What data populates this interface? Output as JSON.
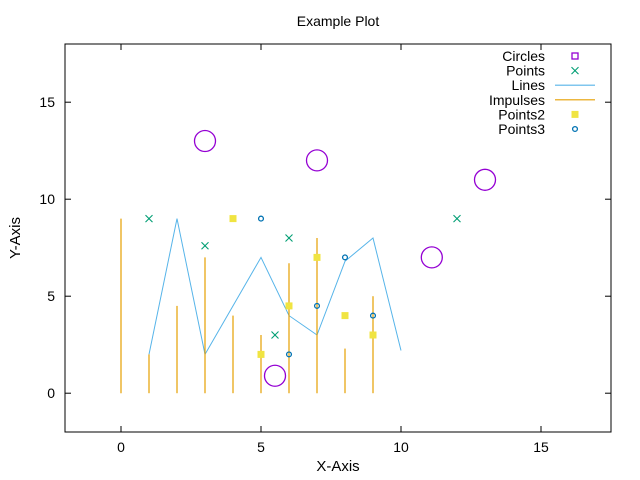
{
  "chart_data": {
    "type": "scatter",
    "title": "Example Plot",
    "xlabel": "X-Axis",
    "ylabel": "Y-Axis",
    "xlim": [
      -2,
      17.5
    ],
    "ylim": [
      -2,
      18
    ],
    "xticks": [
      0,
      5,
      10,
      15
    ],
    "yticks": [
      0,
      5,
      10,
      15
    ],
    "grid": false,
    "legend_position": "top-right",
    "series": [
      {
        "name": "Circles",
        "kind": "circles",
        "color": "#9400d3",
        "points": [
          [
            3,
            13
          ],
          [
            5.5,
            0.9
          ],
          [
            7,
            12
          ],
          [
            11.1,
            7
          ],
          [
            13,
            11
          ]
        ]
      },
      {
        "name": "Points",
        "kind": "points-x",
        "color": "#009e73",
        "points": [
          [
            1,
            9
          ],
          [
            3,
            7.6
          ],
          [
            5.5,
            3
          ],
          [
            6,
            8
          ],
          [
            12,
            9
          ]
        ]
      },
      {
        "name": "Lines",
        "kind": "line",
        "color": "#56b4e9",
        "points": [
          [
            1,
            2
          ],
          [
            2,
            9
          ],
          [
            3,
            2
          ],
          [
            5,
            7
          ],
          [
            6,
            4
          ],
          [
            7,
            3
          ],
          [
            8,
            6.8
          ],
          [
            9,
            8
          ],
          [
            10,
            2.2
          ]
        ]
      },
      {
        "name": "Impulses",
        "kind": "impulses",
        "color": "#e69f00",
        "points": [
          [
            0,
            9
          ],
          [
            1,
            2
          ],
          [
            2,
            4.5
          ],
          [
            3,
            7
          ],
          [
            4,
            4
          ],
          [
            5,
            3
          ],
          [
            6,
            6.7
          ],
          [
            7,
            8
          ],
          [
            8,
            2.3
          ],
          [
            9,
            5
          ]
        ]
      },
      {
        "name": "Points2",
        "kind": "filled-squares",
        "color": "#f0e442",
        "points": [
          [
            4,
            9
          ],
          [
            5,
            2
          ],
          [
            6,
            4.5
          ],
          [
            7,
            7
          ],
          [
            8,
            4
          ],
          [
            9,
            3
          ]
        ]
      },
      {
        "name": "Points3",
        "kind": "small-circles",
        "color": "#0072b2",
        "points": [
          [
            5,
            9
          ],
          [
            6,
            2
          ],
          [
            7,
            4.5
          ],
          [
            8,
            7
          ],
          [
            9,
            4
          ]
        ]
      }
    ]
  }
}
